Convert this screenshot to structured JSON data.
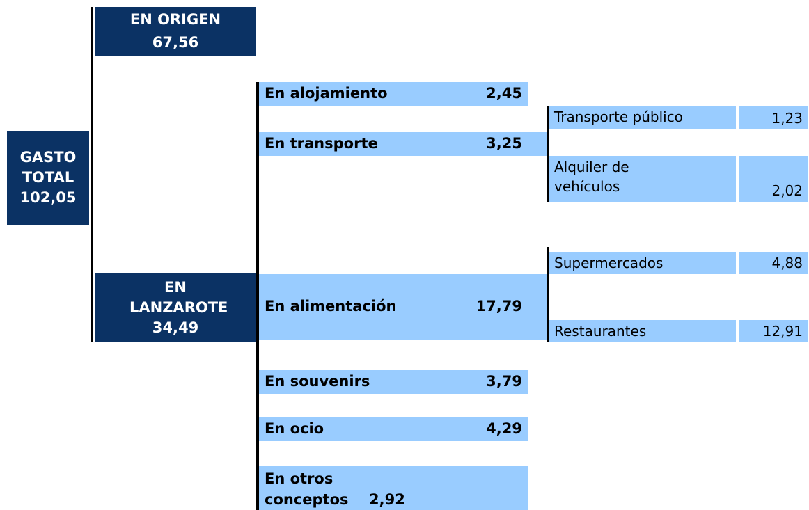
{
  "total": {
    "label": "GASTO TOTAL",
    "value": "102,05"
  },
  "origin": {
    "label": "EN ORIGEN",
    "value": "67,56"
  },
  "local": {
    "label": "EN LANZAROTE",
    "value": "34,49"
  },
  "items": [
    {
      "label": "En alojamiento",
      "value": "2,45"
    },
    {
      "label": "En transporte",
      "value": "3,25"
    },
    {
      "label": "En alimentación",
      "value": "17,79"
    },
    {
      "label": "En souvenirs",
      "value": "3,79"
    },
    {
      "label": "En ocio",
      "value": "4,29"
    },
    {
      "label": "En otros conceptos",
      "value": "2,92"
    }
  ],
  "transport": [
    {
      "label": "Transporte público",
      "value": "1,23"
    },
    {
      "label": "Alquiler de vehículos",
      "value": "2,02"
    }
  ],
  "food": [
    {
      "label": "Supermercados",
      "value": "4,88"
    },
    {
      "label": "Restaurantes",
      "value": "12,91"
    }
  ]
}
